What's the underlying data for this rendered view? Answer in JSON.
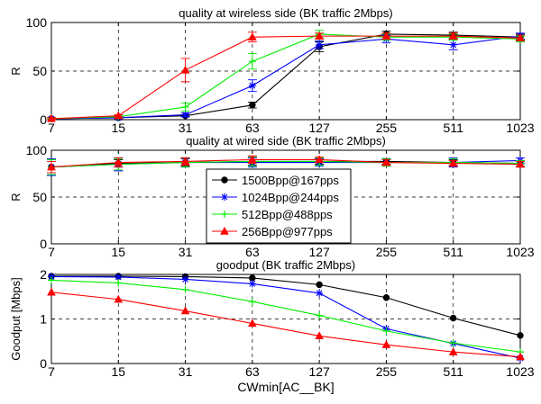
{
  "chart_data": [
    {
      "type": "line",
      "title": "quality at wireless side (BK traffic 2Mbps)",
      "xlabel": "",
      "ylabel": "R",
      "x_ticks": [
        "7",
        "15",
        "31",
        "63",
        "127",
        "255",
        "511",
        "1023"
      ],
      "y_ticks": [
        "0",
        "50",
        "100"
      ],
      "ylim": [
        0,
        100
      ],
      "grid": true,
      "error_bars": true,
      "series": [
        {
          "name": "1500Bpp@167pps",
          "color": "#000000",
          "marker": "circle",
          "values": [
            1,
            2,
            4,
            15,
            75,
            88,
            87,
            85
          ],
          "errors": [
            1,
            1,
            1,
            3,
            5,
            3,
            3,
            3
          ]
        },
        {
          "name": "1024Bpp@244pps",
          "color": "#0000ff",
          "marker": "star",
          "values": [
            1,
            2,
            5,
            35,
            77,
            83,
            77,
            86
          ],
          "errors": [
            1,
            1,
            2,
            6,
            4,
            4,
            5,
            3
          ]
        },
        {
          "name": "512Bpp@488pps",
          "color": "#00ee00",
          "marker": "plus",
          "values": [
            1,
            3,
            13,
            60,
            88,
            85,
            85,
            83
          ],
          "errors": [
            1,
            1,
            4,
            8,
            4,
            3,
            3,
            3
          ]
        },
        {
          "name": "256Bpp@977pps",
          "color": "#ff0000",
          "marker": "triangle",
          "values": [
            1,
            4,
            51,
            85,
            86,
            86,
            86,
            84
          ],
          "errors": [
            1,
            1,
            12,
            5,
            3,
            3,
            3,
            3
          ]
        }
      ]
    },
    {
      "type": "line",
      "title": "quality at wired side (BK traffic 2Mbps)",
      "xlabel": "",
      "ylabel": "R",
      "x_ticks": [
        "7",
        "15",
        "31",
        "63",
        "127",
        "255",
        "511",
        "1023"
      ],
      "y_ticks": [
        "0",
        "50",
        "100"
      ],
      "ylim": [
        0,
        100
      ],
      "grid": true,
      "error_bars": true,
      "legend": "center",
      "series": [
        {
          "name": "1500Bpp@167pps",
          "color": "#000000",
          "marker": "circle",
          "values": [
            82,
            86,
            87,
            88,
            88,
            88,
            87,
            86
          ],
          "errors": [
            8,
            4,
            4,
            4,
            3,
            3,
            3,
            3
          ]
        },
        {
          "name": "1024Bpp@244pps",
          "color": "#0000ff",
          "marker": "star",
          "values": [
            82,
            85,
            87,
            87,
            87,
            87,
            87,
            89
          ],
          "errors": [
            9,
            7,
            5,
            5,
            4,
            4,
            5,
            3
          ]
        },
        {
          "name": "512Bpp@488pps",
          "color": "#00ee00",
          "marker": "plus",
          "values": [
            82,
            85,
            87,
            88,
            88,
            87,
            87,
            86
          ],
          "errors": [
            8,
            6,
            5,
            5,
            4,
            4,
            4,
            3
          ]
        },
        {
          "name": "256Bpp@977pps",
          "color": "#ff0000",
          "marker": "triangle",
          "values": [
            82,
            87,
            88,
            90,
            90,
            87,
            86,
            85
          ],
          "errors": [
            6,
            5,
            4,
            4,
            3,
            3,
            3,
            3
          ]
        }
      ]
    },
    {
      "type": "line",
      "title": "goodput (BK traffic 2Mbps)",
      "xlabel": "CWmin[AC__BK]",
      "ylabel": "Goodput [Mbps]",
      "x_ticks": [
        "7",
        "15",
        "31",
        "63",
        "127",
        "255",
        "511",
        "1023"
      ],
      "y_ticks": [
        "0",
        "1",
        "2"
      ],
      "ylim": [
        0,
        2
      ],
      "grid": true,
      "series": [
        {
          "name": "1500Bpp@167pps",
          "color": "#000000",
          "marker": "circle",
          "values": [
            1.96,
            1.96,
            1.95,
            1.92,
            1.77,
            1.48,
            1.02,
            0.63
          ]
        },
        {
          "name": "1024Bpp@244pps",
          "color": "#0000ff",
          "marker": "star",
          "values": [
            1.95,
            1.94,
            1.89,
            1.79,
            1.58,
            0.78,
            0.45,
            0.12
          ]
        },
        {
          "name": "512Bpp@488pps",
          "color": "#00ee00",
          "marker": "plus",
          "values": [
            1.87,
            1.81,
            1.66,
            1.39,
            1.08,
            0.73,
            0.46,
            0.26
          ]
        },
        {
          "name": "256Bpp@977pps",
          "color": "#ff0000",
          "marker": "triangle",
          "values": [
            1.6,
            1.44,
            1.18,
            0.9,
            0.62,
            0.42,
            0.26,
            0.15
          ]
        }
      ]
    }
  ]
}
